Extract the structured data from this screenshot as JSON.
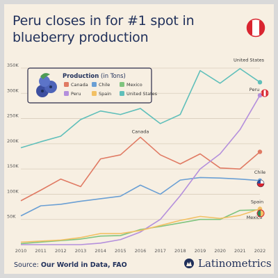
{
  "header": {
    "title": "Peru closes in for #1 spot in blueberry production"
  },
  "legend": {
    "title_bold": "Production",
    "title_unit": " (in Tons)"
  },
  "footer": {
    "source_label": "Source: ",
    "source_value": "Our World in Data, FAO",
    "brand": "Latinometrics"
  },
  "colors": {
    "background": "#f7efe2",
    "title": "#1f2f5a",
    "legend_border": "#2b2b4a"
  },
  "chart_data": {
    "type": "line",
    "title": "Peru closes in for #1 spot in blueberry production",
    "x": [
      2010,
      2011,
      2012,
      2013,
      2014,
      2015,
      2016,
      2017,
      2018,
      2019,
      2020,
      2021,
      2022
    ],
    "xlim": [
      2010,
      2022
    ],
    "ylim": [
      0,
      350000
    ],
    "yticks": [
      50000,
      100000,
      150000,
      200000,
      250000,
      300000,
      350000
    ],
    "ytick_labels": [
      "50K",
      "100K",
      "150K",
      "200K",
      "250K",
      "300K",
      "350K"
    ],
    "grid": "horizontal",
    "legend_position": "top-left",
    "series": [
      {
        "name": "Canada",
        "color": "#e07a63",
        "label": "Canada",
        "label_position": "above-2016",
        "values": [
          87000,
          108000,
          130000,
          115000,
          170000,
          178000,
          213000,
          178000,
          160000,
          180000,
          152000,
          150000,
          184000
        ]
      },
      {
        "name": "Chile",
        "color": "#6a9fd4",
        "label": "Chile",
        "label_position": "end",
        "values": [
          57000,
          77000,
          80000,
          86000,
          91000,
          96000,
          118000,
          100000,
          128000,
          133000,
          132000,
          130000,
          127000
        ]
      },
      {
        "name": "Mexico",
        "color": "#7fc47f",
        "label": "Mexico",
        "label_position": "end",
        "values": [
          2000,
          5000,
          8000,
          11000,
          17000,
          18000,
          30000,
          36000,
          43000,
          50000,
          50000,
          68000,
          69000
        ]
      },
      {
        "name": "Peru",
        "color": "#b48fdc",
        "label": "Peru",
        "label_position": "end",
        "values": [
          0,
          0,
          0,
          0,
          3000,
          10000,
          25000,
          50000,
          97000,
          150000,
          180000,
          228000,
          296000
        ]
      },
      {
        "name": "Spain",
        "color": "#f2c064",
        "label": "Spain",
        "label_position": "end",
        "values": [
          5000,
          7000,
          9000,
          14000,
          22000,
          22000,
          28000,
          38000,
          48000,
          56000,
          52000,
          58000,
          71000
        ]
      },
      {
        "name": "United States",
        "color": "#5fbfba",
        "label": "United States",
        "label_position": "end-above",
        "values": [
          192000,
          204000,
          215000,
          248000,
          265000,
          258000,
          270000,
          240000,
          258000,
          345000,
          320000,
          349000,
          322000
        ]
      }
    ]
  }
}
